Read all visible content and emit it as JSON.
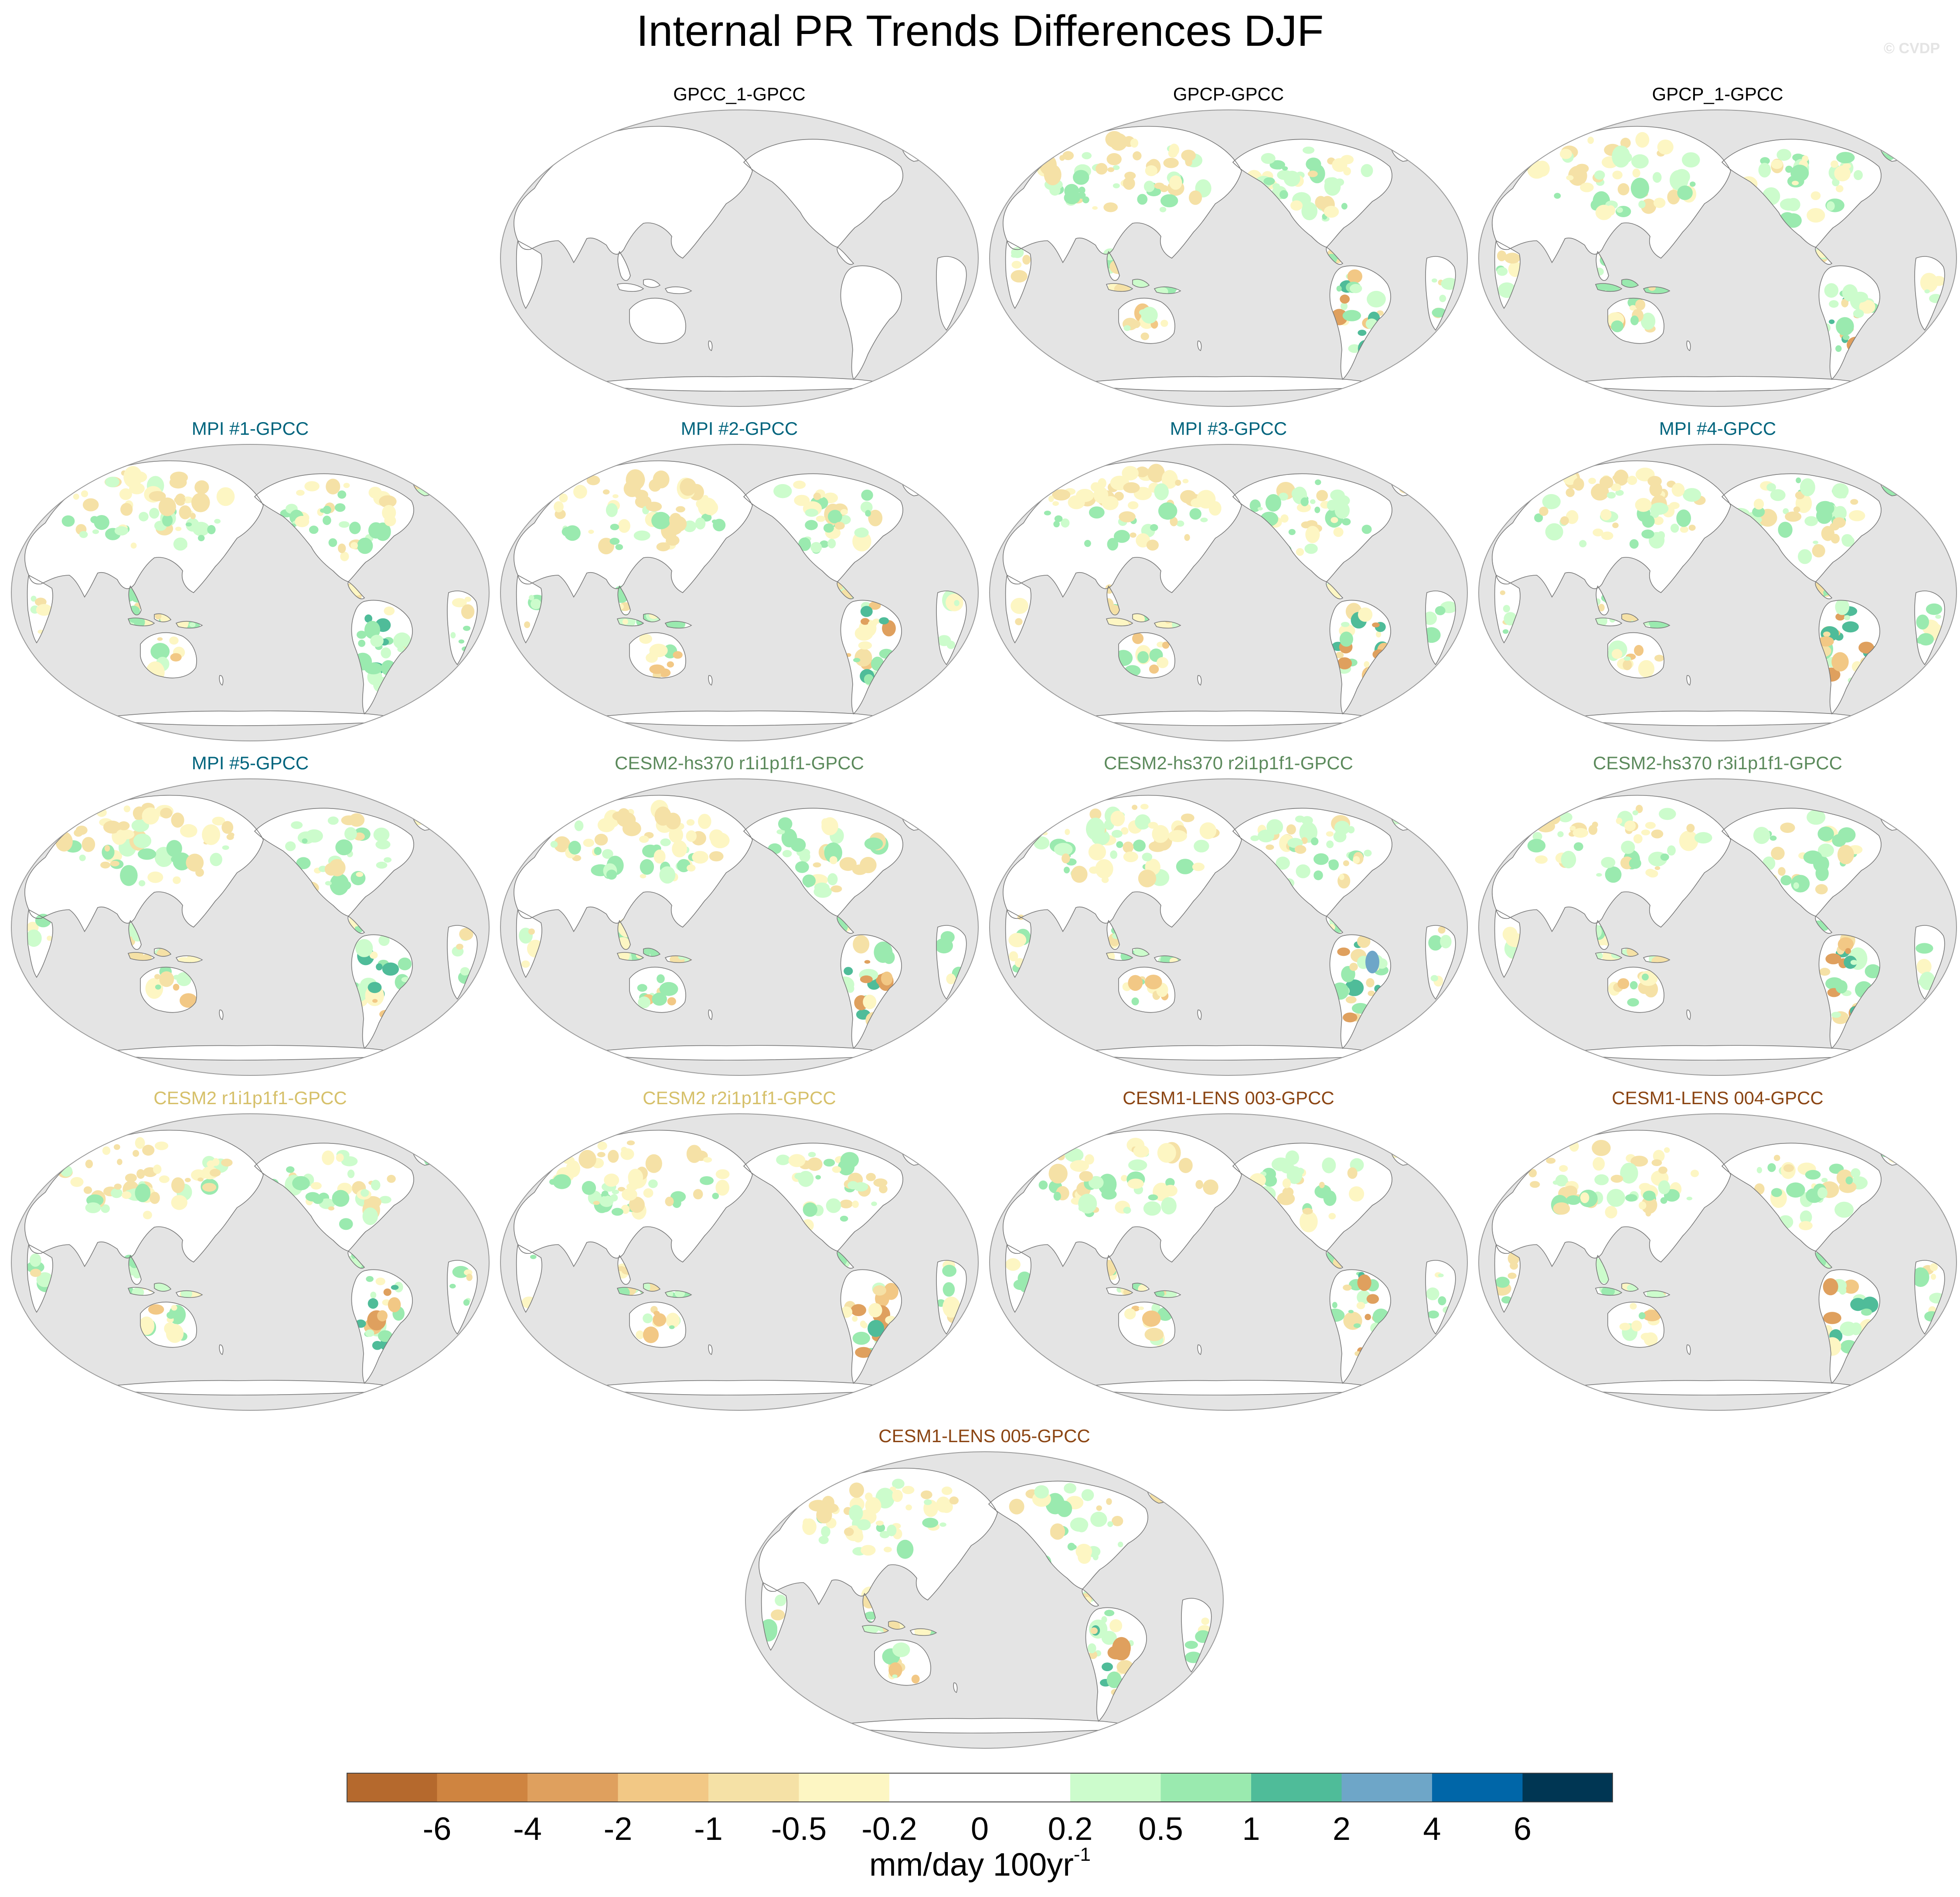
{
  "page": {
    "title": "Internal PR Trends Differences DJF",
    "watermark": "© CVDP"
  },
  "colors": {
    "ocean": "#e4e4e4",
    "land_neutral": "#ffffff",
    "coast": "#777777"
  },
  "chart_data": {
    "type": "heatmap",
    "description_of_panels": "map panels",
    "panels": [
      {
        "title": "GPCC_1-GPCC",
        "title_color": "#000000",
        "empty": true
      },
      {
        "title": "GPCP-GPCC",
        "title_color": "#000000",
        "sa_wet": 0.75,
        "wet": 0.5,
        "dry": 0.6,
        "seed": 2
      },
      {
        "title": "GPCP_1-GPCC",
        "title_color": "#000000",
        "sa_wet": 0.75,
        "wet": 0.5,
        "dry": 0.6,
        "seed": 3
      },
      {
        "title": "MPI #1-GPCC",
        "title_color": "#00647d",
        "sa_wet": 0.7,
        "wet": 0.55,
        "dry": 0.6,
        "seed": 4
      },
      {
        "title": "MPI #2-GPCC",
        "title_color": "#00647d",
        "sa_wet": 0.5,
        "wet": 0.45,
        "dry": 0.75,
        "seed": 5
      },
      {
        "title": "MPI #3-GPCC",
        "title_color": "#00647d",
        "sa_wet": 0.3,
        "wet": 0.4,
        "dry": 0.7,
        "seed": 6
      },
      {
        "title": "MPI #4-GPCC",
        "title_color": "#00647d",
        "sa_wet": 0.6,
        "wet": 0.6,
        "dry": 0.55,
        "seed": 7
      },
      {
        "title": "MPI #5-GPCC",
        "title_color": "#00647d",
        "sa_wet": 0.65,
        "wet": 0.5,
        "dry": 0.65,
        "seed": 8
      },
      {
        "title": "CESM2-hs370 r1i1p1f1-GPCC",
        "title_color": "#5c8a5c",
        "sa_wet": 0.55,
        "wet": 0.45,
        "dry": 0.65,
        "seed": 9
      },
      {
        "title": "CESM2-hs370 r2i1p1f1-GPCC",
        "title_color": "#5c8a5c",
        "sa_wet": 0.5,
        "wet": 0.45,
        "dry": 0.6,
        "seed": 10,
        "sa_blue": true
      },
      {
        "title": "CESM2-hs370 r3i1p1f1-GPCC",
        "title_color": "#5c8a5c",
        "sa_wet": 0.55,
        "wet": 0.45,
        "dry": 0.6,
        "seed": 11
      },
      {
        "title": "CESM2 r1i1p1f1-GPCC",
        "title_color": "#d6c06a",
        "sa_wet": 0.7,
        "wet": 0.5,
        "dry": 0.6,
        "seed": 12
      },
      {
        "title": "CESM2 r2i1p1f1-GPCC",
        "title_color": "#d6c06a",
        "sa_wet": 0.45,
        "wet": 0.45,
        "dry": 0.75,
        "seed": 13
      },
      {
        "title": "CESM1-LENS 003-GPCC",
        "title_color": "#8b4513",
        "sa_wet": 0.5,
        "wet": 0.45,
        "dry": 0.65,
        "seed": 14
      },
      {
        "title": "CESM1-LENS 004-GPCC",
        "title_color": "#8b4513",
        "sa_wet": 0.55,
        "wet": 0.45,
        "dry": 0.6,
        "seed": 15
      },
      {
        "title": "CESM1-LENS 005-GPCC",
        "title_color": "#8b4513",
        "sa_wet": 0.45,
        "wet": 0.4,
        "dry": 0.6,
        "seed": 16
      }
    ],
    "colorbar": {
      "colors": [
        "#b5692d",
        "#cf8440",
        "#dfa05e",
        "#f2c885",
        "#f5e1a6",
        "#fdf6c3",
        "#ffffff",
        "#ffffff",
        "#ccfccc",
        "#9aeaaf",
        "#4fbc99",
        "#6ea6c8",
        "#0066a8",
        "#003653"
      ],
      "tick_labels": [
        "-6",
        "-4",
        "-2",
        "-1",
        "-0.5",
        "-0.2",
        "0",
        "0.2",
        "0.5",
        "1",
        "2",
        "4",
        "6"
      ],
      "unit_main": "mm/day 100yr",
      "unit_sup": "-1"
    }
  }
}
